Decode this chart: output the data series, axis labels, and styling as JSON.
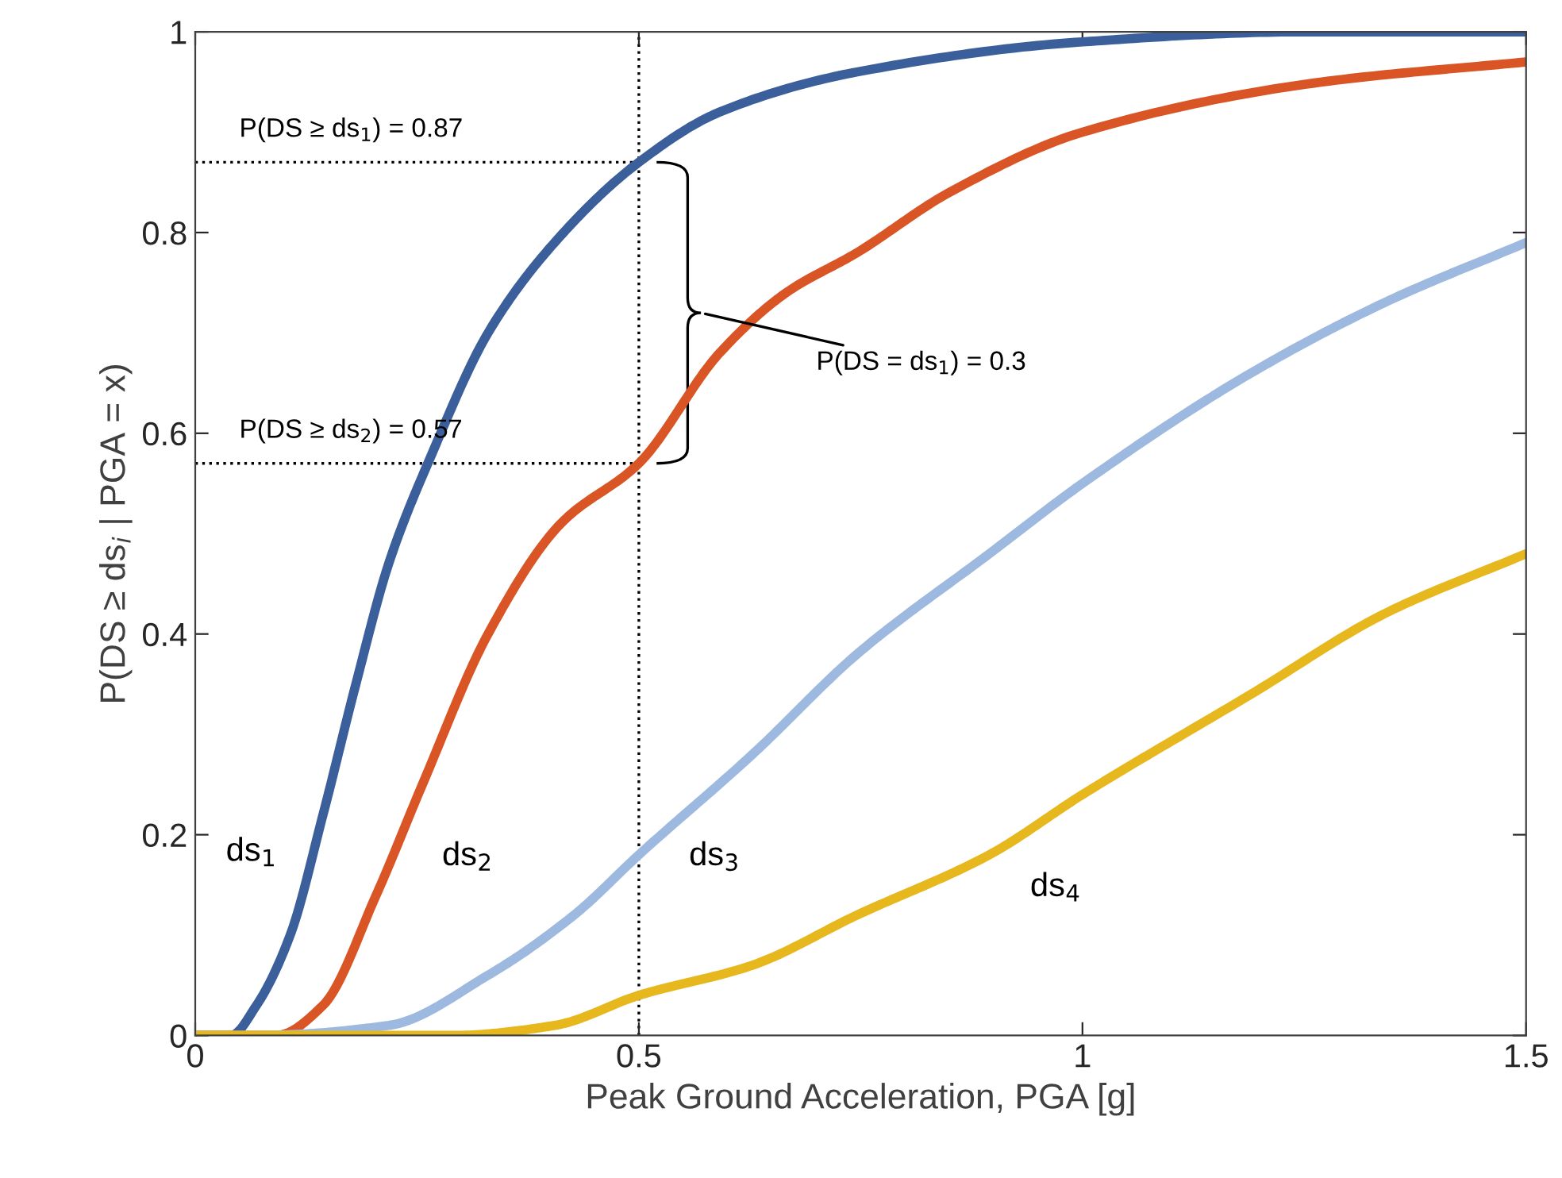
{
  "chart_data": {
    "type": "line",
    "xlabel": "Peak Ground Acceleration, PGA [g]",
    "ylabel": "P(DS ≥ ds$_{i}$ | PGA = x)",
    "xlim": [
      0,
      1.5
    ],
    "ylim": [
      0,
      1
    ],
    "xticks": [
      0,
      0.5,
      1,
      1.5
    ],
    "yticks": [
      0,
      0.2,
      0.4,
      0.6,
      0.8,
      1
    ],
    "grid": false,
    "legend": false,
    "marker": "none",
    "line_style": "solid",
    "series": [
      {
        "name": "ds$_{1}$",
        "color": "#3a5f9a",
        "x": [
          0,
          0.04,
          0.069,
          0.107,
          0.144,
          0.181,
          0.218,
          0.267,
          0.33,
          0.405,
          0.5,
          0.591,
          0.746,
          1.0,
          1.25,
          1.5
        ],
        "values": [
          0,
          0,
          0.03,
          0.1,
          0.22,
          0.35,
          0.47,
          0.58,
          0.7,
          0.79,
          0.87,
          0.92,
          0.96,
          0.99,
          1.0,
          1.0
        ]
      },
      {
        "name": "ds$_{2}$",
        "color": "#d95525",
        "x": [
          0,
          0.091,
          0.144,
          0.204,
          0.256,
          0.33,
          0.412,
          0.5,
          0.591,
          0.666,
          0.746,
          0.85,
          1.0,
          1.27,
          1.5
        ],
        "values": [
          0,
          0,
          0.03,
          0.14,
          0.25,
          0.4,
          0.51,
          0.57,
          0.68,
          0.74,
          0.78,
          0.84,
          0.9,
          0.95,
          0.97
        ]
      },
      {
        "name": "ds$_{3}$",
        "color": "#9db9e0",
        "x": [
          0,
          0.069,
          0.218,
          0.33,
          0.427,
          0.5,
          0.628,
          0.746,
          0.895,
          1.0,
          1.19,
          1.34,
          1.5
        ],
        "values": [
          0,
          0,
          0.01,
          0.06,
          0.12,
          0.18,
          0.28,
          0.38,
          0.48,
          0.55,
          0.66,
          0.73,
          0.79
        ]
      },
      {
        "name": "ds$_{4}$",
        "color": "#e6b81e",
        "x": [
          0,
          0.29,
          0.405,
          0.5,
          0.628,
          0.746,
          0.895,
          1.0,
          1.19,
          1.34,
          1.5
        ],
        "values": [
          0,
          0,
          0.01,
          0.04,
          0.07,
          0.12,
          0.18,
          0.24,
          0.34,
          0.42,
          0.48
        ]
      }
    ],
    "ref_lines": [
      {
        "axis": "x",
        "value": 0.5,
        "color": "#000000",
        "line_style": "dotted"
      },
      {
        "axis": "y",
        "value": 0.87,
        "color": "#000000",
        "line_style": "dotted"
      },
      {
        "axis": "y",
        "value": 0.57,
        "color": "#000000",
        "line_style": "dotted"
      }
    ],
    "annotations": [
      "P(DS ≥ ds$_{1}$) = 0.87",
      "P(DS ≥ ds$_{2}$) = 0.57",
      "P(DS = ds$_{1}$) = 0.3"
    ]
  }
}
